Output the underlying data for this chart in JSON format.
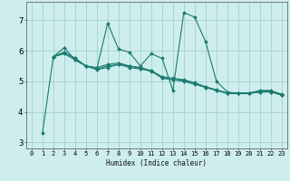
{
  "xlabel": "Humidex (Indice chaleur)",
  "bg_color": "#ceeeed",
  "grid_color": "#aad4d0",
  "line_color": "#1a7a6e",
  "xlim": [
    -0.5,
    23.5
  ],
  "ylim": [
    2.8,
    7.6
  ],
  "yticks": [
    3,
    4,
    5,
    6,
    7
  ],
  "xticks": [
    0,
    1,
    2,
    3,
    4,
    5,
    6,
    7,
    8,
    9,
    10,
    11,
    12,
    13,
    14,
    15,
    16,
    17,
    18,
    19,
    20,
    21,
    22,
    23
  ],
  "lines": [
    {
      "x": [
        1,
        2,
        3,
        4,
        5,
        6,
        7,
        8,
        9,
        10,
        11,
        12,
        13,
        14,
        15,
        16,
        17,
        18,
        19,
        20,
        21,
        22,
        23
      ],
      "y": [
        3.3,
        5.8,
        6.1,
        5.7,
        5.5,
        5.4,
        6.9,
        6.05,
        5.95,
        5.5,
        5.9,
        5.75,
        4.7,
        7.25,
        7.1,
        6.3,
        5.0,
        4.65,
        4.6,
        4.6,
        4.7,
        4.7,
        4.55
      ]
    },
    {
      "x": [
        2,
        3,
        4,
        5,
        6,
        7,
        8,
        9,
        10,
        11,
        12,
        13,
        14,
        15,
        16,
        17,
        18,
        19,
        20,
        21,
        22,
        23
      ],
      "y": [
        5.8,
        5.95,
        5.75,
        5.5,
        5.4,
        5.5,
        5.55,
        5.45,
        5.4,
        5.35,
        5.1,
        5.05,
        5.0,
        4.9,
        4.8,
        4.7,
        4.6,
        4.6,
        4.6,
        4.65,
        4.65,
        4.55
      ]
    },
    {
      "x": [
        2,
        3,
        4,
        5,
        6,
        7,
        8,
        9,
        10,
        11,
        12,
        13,
        14,
        15,
        16,
        17,
        18,
        19,
        20,
        21,
        22,
        23
      ],
      "y": [
        5.8,
        5.95,
        5.75,
        5.5,
        5.45,
        5.55,
        5.6,
        5.5,
        5.45,
        5.35,
        5.15,
        5.1,
        5.05,
        4.95,
        4.82,
        4.72,
        4.62,
        4.62,
        4.62,
        4.68,
        4.68,
        4.58
      ]
    },
    {
      "x": [
        2,
        3,
        4,
        5,
        6,
        7,
        8,
        9,
        10,
        11,
        12,
        13,
        14,
        15,
        16,
        17,
        18,
        19,
        20,
        21,
        22,
        23
      ],
      "y": [
        5.8,
        5.9,
        5.7,
        5.5,
        5.38,
        5.45,
        5.55,
        5.5,
        5.42,
        5.32,
        5.12,
        5.05,
        5.02,
        4.92,
        4.8,
        4.7,
        4.6,
        4.6,
        4.6,
        4.65,
        4.65,
        4.55
      ]
    }
  ]
}
